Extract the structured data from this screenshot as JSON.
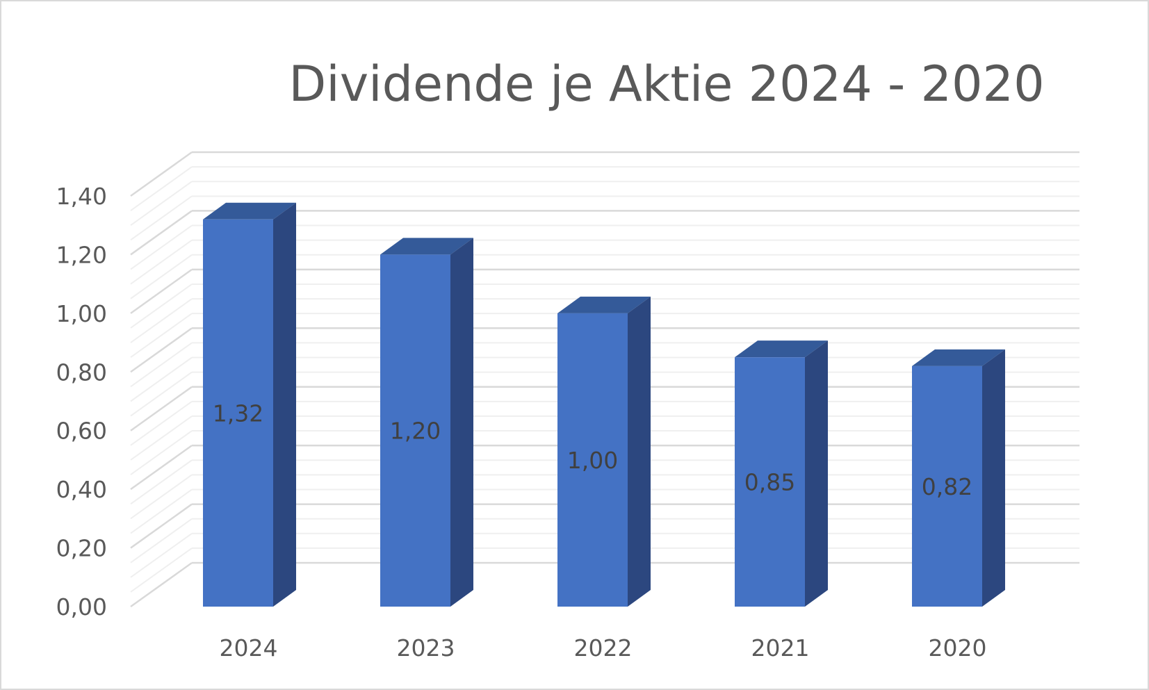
{
  "chart_data": {
    "type": "bar",
    "title": "Dividende je Aktie 2024 - 2020",
    "categories": [
      "2024",
      "2023",
      "2022",
      "2021",
      "2020"
    ],
    "values": [
      1.32,
      1.2,
      1.0,
      0.85,
      0.82
    ],
    "data_labels": [
      "1,32",
      "1,20",
      "1,00",
      "0,85",
      "0,82"
    ],
    "y_ticks": [
      "0,00",
      "0,20",
      "0,40",
      "0,60",
      "0,80",
      "1,00",
      "1,20",
      "1,40"
    ],
    "ylim": [
      0,
      1.4
    ],
    "y_step": 0.2,
    "grid": true,
    "minor_grid": true,
    "legend": "none",
    "three_d": true,
    "colors": {
      "bar_front": "#4472c4",
      "bar_side": "#2c477f",
      "bar_top": "#345a99",
      "grid_major": "#d9d9d9",
      "grid_minor": "#efefef",
      "text": "#595959",
      "data_label": "#404040",
      "border": "#d9d9d9"
    }
  }
}
